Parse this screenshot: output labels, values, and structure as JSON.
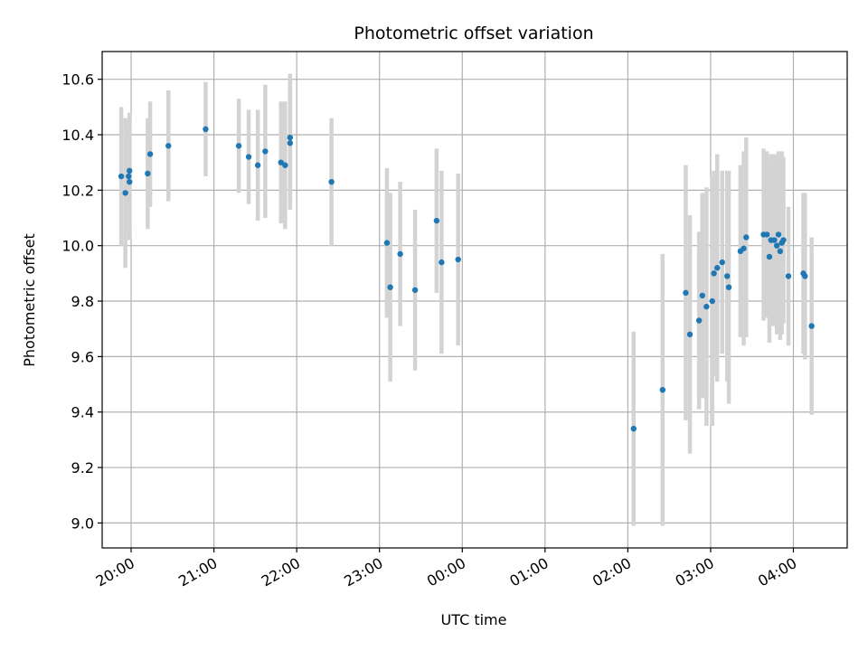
{
  "chart_data": {
    "type": "scatter",
    "title": "Photometric offset variation",
    "xlabel": "UTC time",
    "ylabel": "Photometric offset",
    "x_unit": "hours since 00:00 UTC (negative = previous evening)",
    "xlim": [
      -4.35,
      4.65
    ],
    "ylim": [
      8.91,
      10.7
    ],
    "grid": true,
    "x_ticks": [
      {
        "value": -4,
        "label": "20:00"
      },
      {
        "value": -3,
        "label": "21:00"
      },
      {
        "value": -2,
        "label": "22:00"
      },
      {
        "value": -1,
        "label": "23:00"
      },
      {
        "value": 0,
        "label": "00:00"
      },
      {
        "value": 1,
        "label": "01:00"
      },
      {
        "value": 2,
        "label": "02:00"
      },
      {
        "value": 3,
        "label": "03:00"
      },
      {
        "value": 4,
        "label": "04:00"
      }
    ],
    "y_ticks": [
      {
        "value": 9.0,
        "label": "9.0"
      },
      {
        "value": 9.2,
        "label": "9.2"
      },
      {
        "value": 9.4,
        "label": "9.4"
      },
      {
        "value": 9.6,
        "label": "9.6"
      },
      {
        "value": 9.8,
        "label": "9.8"
      },
      {
        "value": 10.0,
        "label": "10.0"
      },
      {
        "value": 10.2,
        "label": "10.2"
      },
      {
        "value": 10.4,
        "label": "10.4"
      },
      {
        "value": 10.6,
        "label": "10.6"
      }
    ],
    "colors": {
      "point": "#1f77b4",
      "errorbar": "#d3d3d3",
      "grid": "#b0b0b0"
    },
    "points": [
      {
        "x": -4.12,
        "y": 10.25,
        "err": 0.25
      },
      {
        "x": -4.07,
        "y": 10.19,
        "err": 0.27
      },
      {
        "x": -4.03,
        "y": 10.25,
        "err": 0.2
      },
      {
        "x": -4.02,
        "y": 10.23,
        "err": 0.21
      },
      {
        "x": -4.02,
        "y": 10.27,
        "err": 0.21
      },
      {
        "x": -3.8,
        "y": 10.26,
        "err": 0.2
      },
      {
        "x": -3.77,
        "y": 10.33,
        "err": 0.19
      },
      {
        "x": -3.55,
        "y": 10.36,
        "err": 0.2
      },
      {
        "x": -3.1,
        "y": 10.42,
        "err": 0.17
      },
      {
        "x": -2.7,
        "y": 10.36,
        "err": 0.17
      },
      {
        "x": -2.58,
        "y": 10.32,
        "err": 0.17
      },
      {
        "x": -2.47,
        "y": 10.29,
        "err": 0.2
      },
      {
        "x": -2.38,
        "y": 10.34,
        "err": 0.24
      },
      {
        "x": -2.19,
        "y": 10.3,
        "err": 0.22
      },
      {
        "x": -2.14,
        "y": 10.29,
        "err": 0.23
      },
      {
        "x": -2.08,
        "y": 10.37,
        "err": 0.24
      },
      {
        "x": -2.08,
        "y": 10.39,
        "err": 0.23
      },
      {
        "x": -1.58,
        "y": 10.23,
        "err": 0.23
      },
      {
        "x": -0.91,
        "y": 10.01,
        "err": 0.27
      },
      {
        "x": -0.87,
        "y": 9.85,
        "err": 0.34
      },
      {
        "x": -0.75,
        "y": 9.97,
        "err": 0.26
      },
      {
        "x": -0.57,
        "y": 9.84,
        "err": 0.29
      },
      {
        "x": -0.31,
        "y": 10.09,
        "err": 0.26
      },
      {
        "x": -0.25,
        "y": 9.94,
        "err": 0.33
      },
      {
        "x": -0.05,
        "y": 9.95,
        "err": 0.31
      },
      {
        "x": 2.07,
        "y": 9.34,
        "err": 0.35
      },
      {
        "x": 2.42,
        "y": 9.48,
        "err": 0.49
      },
      {
        "x": 2.7,
        "y": 9.83,
        "err": 0.46
      },
      {
        "x": 2.75,
        "y": 9.68,
        "err": 0.43
      },
      {
        "x": 2.86,
        "y": 9.73,
        "err": 0.32
      },
      {
        "x": 2.9,
        "y": 9.82,
        "err": 0.37
      },
      {
        "x": 2.95,
        "y": 9.78,
        "err": 0.43
      },
      {
        "x": 3.02,
        "y": 9.8,
        "err": 0.45
      },
      {
        "x": 3.04,
        "y": 9.9,
        "err": 0.37
      },
      {
        "x": 3.08,
        "y": 9.92,
        "err": 0.41
      },
      {
        "x": 3.14,
        "y": 9.94,
        "err": 0.33
      },
      {
        "x": 3.2,
        "y": 9.89,
        "err": 0.38
      },
      {
        "x": 3.22,
        "y": 9.85,
        "err": 0.42
      },
      {
        "x": 3.36,
        "y": 9.98,
        "err": 0.31
      },
      {
        "x": 3.4,
        "y": 9.99,
        "err": 0.35
      },
      {
        "x": 3.43,
        "y": 10.03,
        "err": 0.36
      },
      {
        "x": 3.64,
        "y": 10.04,
        "err": 0.31
      },
      {
        "x": 3.68,
        "y": 10.04,
        "err": 0.3
      },
      {
        "x": 3.71,
        "y": 9.96,
        "err": 0.31
      },
      {
        "x": 3.73,
        "y": 10.02,
        "err": 0.31
      },
      {
        "x": 3.77,
        "y": 10.02,
        "err": 0.31
      },
      {
        "x": 3.8,
        "y": 10.0,
        "err": 0.32
      },
      {
        "x": 3.82,
        "y": 10.04,
        "err": 0.3
      },
      {
        "x": 3.84,
        "y": 9.98,
        "err": 0.32
      },
      {
        "x": 3.86,
        "y": 10.01,
        "err": 0.33
      },
      {
        "x": 3.88,
        "y": 10.02,
        "err": 0.3
      },
      {
        "x": 3.94,
        "y": 9.89,
        "err": 0.25
      },
      {
        "x": 4.12,
        "y": 9.9,
        "err": 0.29
      },
      {
        "x": 4.14,
        "y": 9.89,
        "err": 0.3
      },
      {
        "x": 4.22,
        "y": 9.71,
        "err": 0.32
      }
    ]
  }
}
